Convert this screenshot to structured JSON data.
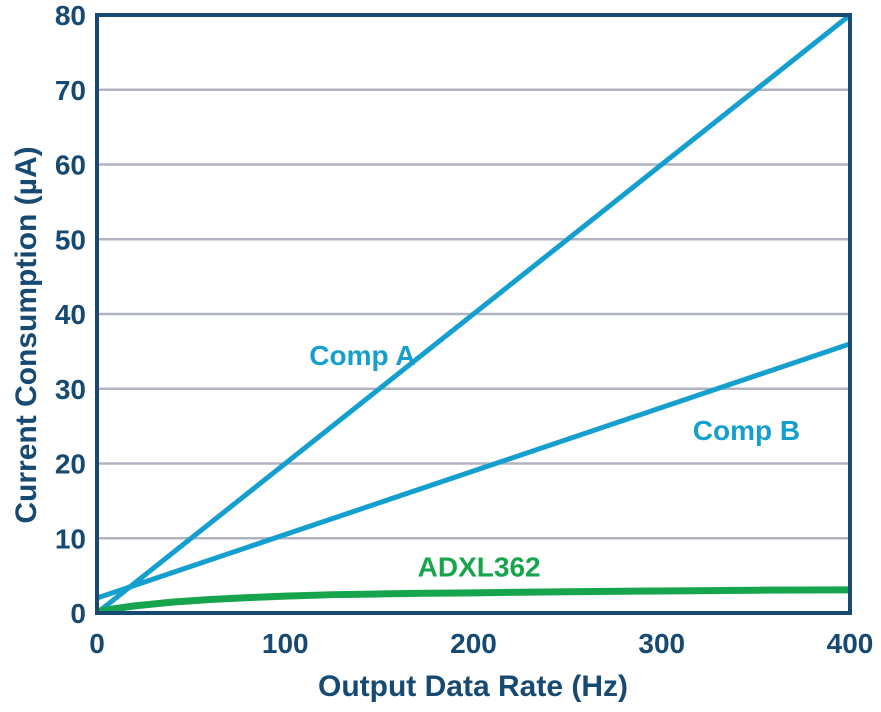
{
  "chart_data": {
    "type": "line",
    "title": "",
    "xlabel": "Output Data Rate (Hz)",
    "ylabel": "Current Consumption (µA)",
    "xlim": [
      0,
      400
    ],
    "ylim": [
      0,
      80
    ],
    "xticks": [
      0,
      100,
      200,
      300,
      400
    ],
    "yticks": [
      0,
      10,
      20,
      30,
      40,
      50,
      60,
      70,
      80
    ],
    "grid": "horizontal-only",
    "legend": "inline-labels",
    "series": [
      {
        "name": "Comp A",
        "color": "#149fce",
        "line_width": 5,
        "x": [
          0,
          400
        ],
        "y": [
          0,
          80
        ],
        "label": {
          "text": "Comp A",
          "x": 141,
          "y": 34.5,
          "anchor": "middle"
        }
      },
      {
        "name": "Comp B",
        "color": "#149fce",
        "line_width": 5,
        "x": [
          0,
          400
        ],
        "y": [
          2,
          36
        ],
        "label": {
          "text": "Comp B",
          "x": 345,
          "y": 24.5,
          "anchor": "middle"
        }
      },
      {
        "name": "ADXL362",
        "color": "#16a54c",
        "line_width": 7,
        "x": [
          0,
          10,
          20,
          30,
          40,
          60,
          80,
          100,
          125,
          150,
          175,
          200,
          250,
          300,
          350,
          400
        ],
        "y": [
          0.2,
          0.6,
          0.95,
          1.2,
          1.45,
          1.8,
          2.05,
          2.25,
          2.45,
          2.55,
          2.65,
          2.7,
          2.85,
          2.95,
          3.05,
          3.1
        ],
        "label": {
          "text": "ADXL362",
          "x": 203,
          "y": 6.2,
          "anchor": "middle"
        }
      }
    ]
  },
  "colors": {
    "axis_frame": "#174a72",
    "text": "#174a72",
    "gridline": "#b0b4c0",
    "background": "#ffffff",
    "comp_line": "#149fce",
    "adxl_line": "#16a54c"
  }
}
